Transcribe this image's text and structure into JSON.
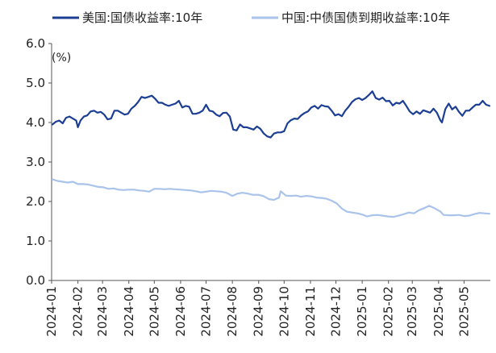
{
  "chart_data": {
    "type": "line",
    "ylabel": "(%)",
    "ylim": [
      0,
      6
    ],
    "y_ticks": [
      "0.0",
      "1.0",
      "2.0",
      "3.0",
      "4.0",
      "5.0",
      "6.0"
    ],
    "x_ticks": [
      "2024-01",
      "2024-02",
      "2024-03",
      "2024-04",
      "2024-05",
      "2024-06",
      "2024-07",
      "2024-08",
      "2024-09",
      "2024-10",
      "2024-11",
      "2024-12",
      "2025-01",
      "2025-02",
      "2025-03",
      "2025-04",
      "2025-05"
    ],
    "legend_position": "top",
    "grid": false,
    "series": [
      {
        "name": "美国:国债收益率:10年",
        "color": "#1c3f94",
        "points": [
          [
            "2024-01-02",
            3.95
          ],
          [
            "2024-01-06",
            4.02
          ],
          [
            "2024-01-10",
            4.05
          ],
          [
            "2024-01-14",
            3.98
          ],
          [
            "2024-01-18",
            4.12
          ],
          [
            "2024-01-22",
            4.15
          ],
          [
            "2024-01-26",
            4.1
          ],
          [
            "2024-01-30",
            4.05
          ],
          [
            "2024-02-01",
            3.88
          ],
          [
            "2024-02-04",
            4.05
          ],
          [
            "2024-02-08",
            4.15
          ],
          [
            "2024-02-12",
            4.18
          ],
          [
            "2024-02-16",
            4.28
          ],
          [
            "2024-02-20",
            4.3
          ],
          [
            "2024-02-24",
            4.25
          ],
          [
            "2024-02-28",
            4.27
          ],
          [
            "2024-03-03",
            4.2
          ],
          [
            "2024-03-07",
            4.08
          ],
          [
            "2024-03-11",
            4.1
          ],
          [
            "2024-03-15",
            4.3
          ],
          [
            "2024-03-19",
            4.3
          ],
          [
            "2024-03-23",
            4.25
          ],
          [
            "2024-03-27",
            4.2
          ],
          [
            "2024-03-31",
            4.22
          ],
          [
            "2024-04-04",
            4.35
          ],
          [
            "2024-04-08",
            4.42
          ],
          [
            "2024-04-12",
            4.52
          ],
          [
            "2024-04-16",
            4.65
          ],
          [
            "2024-04-20",
            4.62
          ],
          [
            "2024-04-24",
            4.65
          ],
          [
            "2024-04-28",
            4.68
          ],
          [
            "2024-05-02",
            4.6
          ],
          [
            "2024-05-06",
            4.5
          ],
          [
            "2024-05-10",
            4.5
          ],
          [
            "2024-05-14",
            4.45
          ],
          [
            "2024-05-18",
            4.42
          ],
          [
            "2024-05-22",
            4.45
          ],
          [
            "2024-05-26",
            4.48
          ],
          [
            "2024-05-30",
            4.55
          ],
          [
            "2024-06-03",
            4.38
          ],
          [
            "2024-06-07",
            4.42
          ],
          [
            "2024-06-11",
            4.4
          ],
          [
            "2024-06-15",
            4.22
          ],
          [
            "2024-06-19",
            4.22
          ],
          [
            "2024-06-23",
            4.25
          ],
          [
            "2024-06-27",
            4.3
          ],
          [
            "2024-07-01",
            4.45
          ],
          [
            "2024-07-05",
            4.3
          ],
          [
            "2024-07-09",
            4.28
          ],
          [
            "2024-07-13",
            4.2
          ],
          [
            "2024-07-17",
            4.16
          ],
          [
            "2024-07-21",
            4.24
          ],
          [
            "2024-07-25",
            4.25
          ],
          [
            "2024-07-29",
            4.15
          ],
          [
            "2024-08-02",
            3.82
          ],
          [
            "2024-08-06",
            3.8
          ],
          [
            "2024-08-10",
            3.95
          ],
          [
            "2024-08-14",
            3.88
          ],
          [
            "2024-08-18",
            3.88
          ],
          [
            "2024-08-22",
            3.85
          ],
          [
            "2024-08-26",
            3.82
          ],
          [
            "2024-08-30",
            3.9
          ],
          [
            "2024-09-03",
            3.84
          ],
          [
            "2024-09-07",
            3.72
          ],
          [
            "2024-09-11",
            3.65
          ],
          [
            "2024-09-15",
            3.62
          ],
          [
            "2024-09-19",
            3.72
          ],
          [
            "2024-09-23",
            3.75
          ],
          [
            "2024-09-27",
            3.75
          ],
          [
            "2024-10-01",
            3.78
          ],
          [
            "2024-10-05",
            3.98
          ],
          [
            "2024-10-09",
            4.06
          ],
          [
            "2024-10-13",
            4.1
          ],
          [
            "2024-10-17",
            4.09
          ],
          [
            "2024-10-21",
            4.18
          ],
          [
            "2024-10-25",
            4.24
          ],
          [
            "2024-10-29",
            4.28
          ],
          [
            "2024-11-02",
            4.38
          ],
          [
            "2024-11-06",
            4.42
          ],
          [
            "2024-11-10",
            4.35
          ],
          [
            "2024-11-14",
            4.44
          ],
          [
            "2024-11-18",
            4.41
          ],
          [
            "2024-11-22",
            4.4
          ],
          [
            "2024-11-26",
            4.3
          ],
          [
            "2024-11-30",
            4.18
          ],
          [
            "2024-12-04",
            4.21
          ],
          [
            "2024-12-08",
            4.16
          ],
          [
            "2024-12-12",
            4.3
          ],
          [
            "2024-12-16",
            4.4
          ],
          [
            "2024-12-20",
            4.52
          ],
          [
            "2024-12-24",
            4.59
          ],
          [
            "2024-12-28",
            4.62
          ],
          [
            "2025-01-01",
            4.57
          ],
          [
            "2025-01-05",
            4.62
          ],
          [
            "2025-01-09",
            4.7
          ],
          [
            "2025-01-13",
            4.79
          ],
          [
            "2025-01-17",
            4.62
          ],
          [
            "2025-01-21",
            4.58
          ],
          [
            "2025-01-25",
            4.63
          ],
          [
            "2025-01-29",
            4.54
          ],
          [
            "2025-02-02",
            4.55
          ],
          [
            "2025-02-06",
            4.43
          ],
          [
            "2025-02-10",
            4.5
          ],
          [
            "2025-02-14",
            4.48
          ],
          [
            "2025-02-18",
            4.55
          ],
          [
            "2025-02-22",
            4.42
          ],
          [
            "2025-02-26",
            4.28
          ],
          [
            "2025-03-02",
            4.21
          ],
          [
            "2025-03-06",
            4.28
          ],
          [
            "2025-03-10",
            4.22
          ],
          [
            "2025-03-14",
            4.31
          ],
          [
            "2025-03-18",
            4.28
          ],
          [
            "2025-03-22",
            4.25
          ],
          [
            "2025-03-26",
            4.35
          ],
          [
            "2025-03-30",
            4.25
          ],
          [
            "2025-04-03",
            4.06
          ],
          [
            "2025-04-05",
            4.0
          ],
          [
            "2025-04-09",
            4.34
          ],
          [
            "2025-04-13",
            4.48
          ],
          [
            "2025-04-17",
            4.33
          ],
          [
            "2025-04-21",
            4.4
          ],
          [
            "2025-04-25",
            4.27
          ],
          [
            "2025-04-29",
            4.17
          ],
          [
            "2025-05-03",
            4.3
          ],
          [
            "2025-05-07",
            4.3
          ],
          [
            "2025-05-11",
            4.38
          ],
          [
            "2025-05-15",
            4.45
          ],
          [
            "2025-05-19",
            4.45
          ],
          [
            "2025-05-23",
            4.55
          ],
          [
            "2025-05-27",
            4.45
          ],
          [
            "2025-05-31",
            4.42
          ]
        ]
      },
      {
        "name": "中国:中债国债到期收益率:10年",
        "color": "#a9c3ea",
        "points": [
          [
            "2024-01-02",
            2.56
          ],
          [
            "2024-01-08",
            2.52
          ],
          [
            "2024-01-14",
            2.5
          ],
          [
            "2024-01-20",
            2.48
          ],
          [
            "2024-01-26",
            2.5
          ],
          [
            "2024-02-01",
            2.44
          ],
          [
            "2024-02-07",
            2.44
          ],
          [
            "2024-02-13",
            2.43
          ],
          [
            "2024-02-19",
            2.4
          ],
          [
            "2024-02-25",
            2.37
          ],
          [
            "2024-03-02",
            2.36
          ],
          [
            "2024-03-08",
            2.32
          ],
          [
            "2024-03-14",
            2.33
          ],
          [
            "2024-03-20",
            2.3
          ],
          [
            "2024-03-26",
            2.29
          ],
          [
            "2024-04-01",
            2.3
          ],
          [
            "2024-04-07",
            2.3
          ],
          [
            "2024-04-13",
            2.28
          ],
          [
            "2024-04-19",
            2.27
          ],
          [
            "2024-04-25",
            2.25
          ],
          [
            "2024-05-01",
            2.32
          ],
          [
            "2024-05-07",
            2.32
          ],
          [
            "2024-05-13",
            2.31
          ],
          [
            "2024-05-19",
            2.32
          ],
          [
            "2024-05-25",
            2.31
          ],
          [
            "2024-06-01",
            2.3
          ],
          [
            "2024-06-07",
            2.29
          ],
          [
            "2024-06-13",
            2.28
          ],
          [
            "2024-06-19",
            2.26
          ],
          [
            "2024-06-25",
            2.23
          ],
          [
            "2024-07-01",
            2.25
          ],
          [
            "2024-07-07",
            2.27
          ],
          [
            "2024-07-13",
            2.26
          ],
          [
            "2024-07-19",
            2.25
          ],
          [
            "2024-07-25",
            2.22
          ],
          [
            "2024-08-01",
            2.14
          ],
          [
            "2024-08-07",
            2.2
          ],
          [
            "2024-08-13",
            2.22
          ],
          [
            "2024-08-19",
            2.2
          ],
          [
            "2024-08-25",
            2.17
          ],
          [
            "2024-09-01",
            2.17
          ],
          [
            "2024-09-07",
            2.13
          ],
          [
            "2024-09-13",
            2.06
          ],
          [
            "2024-09-19",
            2.04
          ],
          [
            "2024-09-25",
            2.1
          ],
          [
            "2024-09-27",
            2.26
          ],
          [
            "2024-10-03",
            2.15
          ],
          [
            "2024-10-09",
            2.14
          ],
          [
            "2024-10-15",
            2.15
          ],
          [
            "2024-10-21",
            2.12
          ],
          [
            "2024-10-27",
            2.14
          ],
          [
            "2024-11-02",
            2.13
          ],
          [
            "2024-11-08",
            2.1
          ],
          [
            "2024-11-14",
            2.09
          ],
          [
            "2024-11-20",
            2.07
          ],
          [
            "2024-11-26",
            2.02
          ],
          [
            "2024-12-02",
            1.95
          ],
          [
            "2024-12-08",
            1.82
          ],
          [
            "2024-12-14",
            1.74
          ],
          [
            "2024-12-20",
            1.72
          ],
          [
            "2024-12-26",
            1.7
          ],
          [
            "2025-01-01",
            1.67
          ],
          [
            "2025-01-07",
            1.62
          ],
          [
            "2025-01-13",
            1.65
          ],
          [
            "2025-01-19",
            1.66
          ],
          [
            "2025-01-25",
            1.64
          ],
          [
            "2025-02-01",
            1.62
          ],
          [
            "2025-02-07",
            1.61
          ],
          [
            "2025-02-13",
            1.64
          ],
          [
            "2025-02-19",
            1.68
          ],
          [
            "2025-02-25",
            1.72
          ],
          [
            "2025-03-03",
            1.7
          ],
          [
            "2025-03-09",
            1.78
          ],
          [
            "2025-03-15",
            1.83
          ],
          [
            "2025-03-21",
            1.89
          ],
          [
            "2025-03-27",
            1.83
          ],
          [
            "2025-04-03",
            1.75
          ],
          [
            "2025-04-07",
            1.66
          ],
          [
            "2025-04-13",
            1.65
          ],
          [
            "2025-04-19",
            1.65
          ],
          [
            "2025-04-25",
            1.66
          ],
          [
            "2025-05-01",
            1.63
          ],
          [
            "2025-05-07",
            1.64
          ],
          [
            "2025-05-13",
            1.68
          ],
          [
            "2025-05-19",
            1.71
          ],
          [
            "2025-05-25",
            1.7
          ],
          [
            "2025-05-31",
            1.69
          ]
        ]
      }
    ]
  }
}
